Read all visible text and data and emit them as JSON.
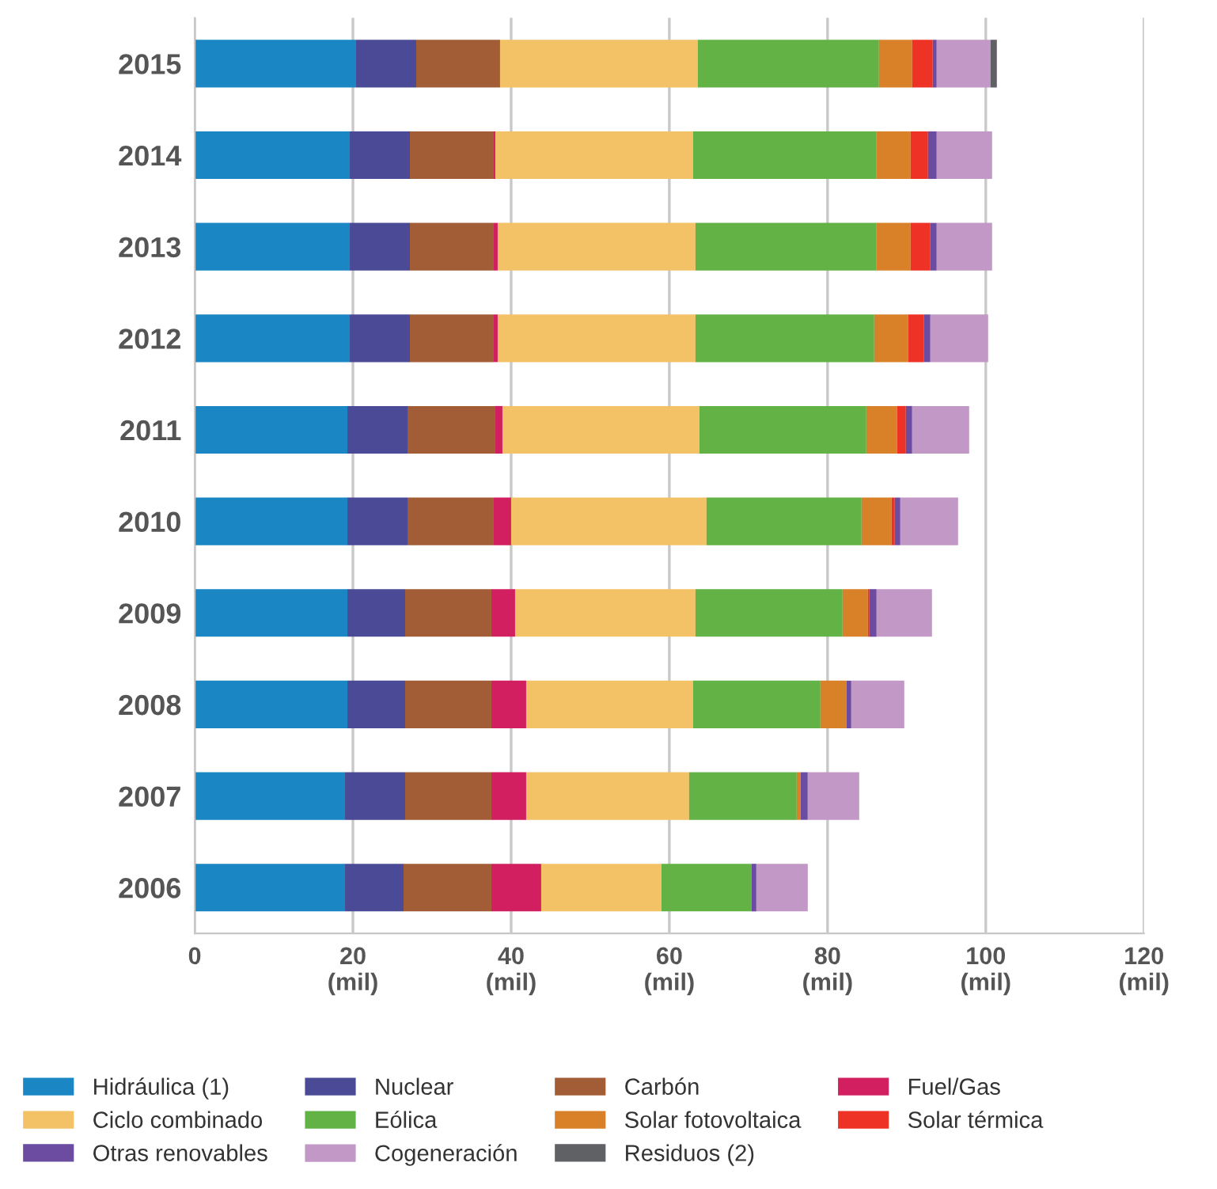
{
  "chart_data": {
    "type": "bar",
    "orientation": "horizontal",
    "stacked": true,
    "categories": [
      "2015",
      "2014",
      "2013",
      "2012",
      "2011",
      "2010",
      "2009",
      "2008",
      "2007",
      "2006"
    ],
    "xlim": [
      0,
      120
    ],
    "xticks": [
      0,
      {
        "value": 20,
        "label": "20\n(mil)"
      },
      {
        "value": 40,
        "label": "40\n(mil)"
      },
      {
        "value": 60,
        "label": "60\n(mil)"
      },
      {
        "value": 80,
        "label": "80\n(mil)"
      },
      {
        "value": 100,
        "label": "100\n(mil)"
      },
      {
        "value": 120,
        "label": "120\n(mil)"
      }
    ],
    "grid": "x",
    "legend": "bottom",
    "series": [
      {
        "name": "Hidráulica (1)",
        "color": "#1a87c4",
        "values": [
          20.4,
          19.6,
          19.6,
          19.6,
          19.3,
          19.3,
          19.3,
          19.3,
          19.0,
          19.0
        ]
      },
      {
        "name": "Nuclear",
        "color": "#4a4a96",
        "values": [
          7.6,
          7.6,
          7.6,
          7.6,
          7.6,
          7.6,
          7.3,
          7.3,
          7.6,
          7.4
        ]
      },
      {
        "name": "Carbón",
        "color": "#a35d36",
        "values": [
          10.6,
          10.6,
          10.6,
          10.6,
          11.1,
          10.9,
          10.9,
          10.9,
          10.9,
          11.1
        ]
      },
      {
        "name": "Fuel/Gas",
        "color": "#d11f5f",
        "values": [
          null,
          0.2,
          0.5,
          0.5,
          0.9,
          2.2,
          3.0,
          4.4,
          4.4,
          6.3
        ]
      },
      {
        "name": "Ciclo combinado",
        "color": "#f4c266",
        "values": [
          25.0,
          25.0,
          25.0,
          25.0,
          24.9,
          24.7,
          22.8,
          21.1,
          20.6,
          15.2
        ]
      },
      {
        "name": "Eólica",
        "color": "#63b246",
        "values": [
          22.9,
          23.2,
          22.9,
          22.6,
          21.1,
          19.6,
          18.6,
          16.1,
          13.6,
          11.4
        ]
      },
      {
        "name": "Solar fotovoltaica",
        "color": "#d98129",
        "values": [
          4.2,
          4.3,
          4.3,
          4.3,
          3.9,
          3.8,
          3.2,
          3.3,
          0.5,
          null
        ]
      },
      {
        "name": "Solar térmica",
        "color": "#ee3326",
        "values": [
          2.6,
          2.2,
          2.5,
          2.0,
          1.1,
          0.4,
          0.2,
          null,
          null,
          null
        ]
      },
      {
        "name": "Otras renovables",
        "color": "#6b4ca0",
        "values": [
          0.5,
          1.1,
          0.8,
          0.8,
          0.8,
          0.7,
          0.9,
          0.6,
          0.9,
          0.6
        ]
      },
      {
        "name": "Cogeneración",
        "color": "#c298c6",
        "values": [
          6.8,
          7.0,
          7.0,
          7.3,
          7.2,
          7.3,
          7.0,
          6.7,
          6.5,
          6.5
        ]
      },
      {
        "name": "Residuos (2)",
        "color": "#5f6164",
        "values": [
          0.8,
          null,
          null,
          null,
          null,
          null,
          null,
          null,
          null,
          null
        ]
      }
    ]
  }
}
